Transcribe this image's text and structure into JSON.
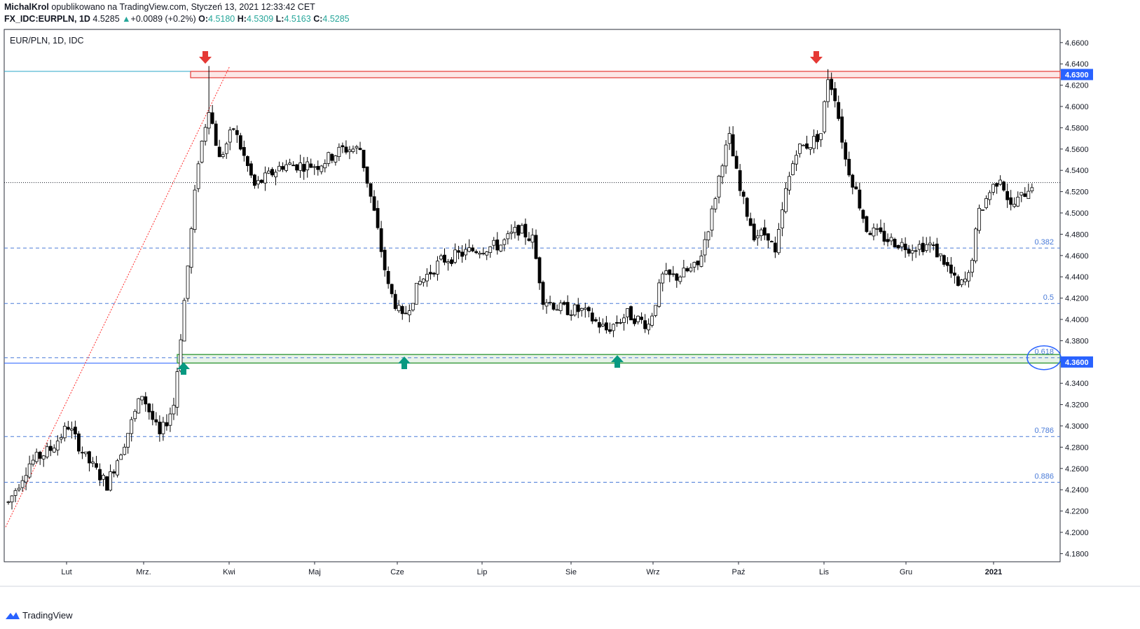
{
  "header": {
    "author": "MichalKrol",
    "published_text": "opublikowano na TradingView.com, Styczeń 13, 2021 12:33:42 CET",
    "symbol": "FX_IDC:EURPLN, 1D",
    "last": "4.5285",
    "change": "+0.0089 (+0.2%)",
    "o_label": "O:",
    "o": "4.5180",
    "h_label": "H:",
    "h": "4.5309",
    "l_label": "L:",
    "l": "4.5163",
    "c_label": "C:",
    "c": "4.5285"
  },
  "footer": {
    "brand": "TradingView"
  },
  "colors": {
    "candle_up_fill": "#ffffff",
    "candle_down_fill": "#000000",
    "fib_line": "#4a7bd8",
    "resistance": "#e53935",
    "support": "#43a047",
    "arrow_down": "#e53935",
    "arrow_up": "#089981",
    "price_marker": "#2962ff",
    "hline": "#2aa6c7",
    "trendline": "#ff2a2a"
  },
  "chart_data": {
    "type": "candlestick",
    "title": "EUR/PLN, 1D, IDC",
    "x_tick_labels": [
      "Lut",
      "Mrz.",
      "Kwi",
      "Maj",
      "Cze",
      "Lip",
      "Sie",
      "Wrz",
      "Paź",
      "Lis",
      "Gru",
      "2021"
    ],
    "y_ticks": [
      "4.6600",
      "4.6400",
      "4.6200",
      "4.6000",
      "4.5800",
      "4.5600",
      "4.5400",
      "4.5200",
      "4.5000",
      "4.4800",
      "4.4600",
      "4.4400",
      "4.4200",
      "4.4000",
      "4.3800",
      "4.3600",
      "4.3400",
      "4.3200",
      "4.3000",
      "4.2800",
      "4.2600",
      "4.2400",
      "4.2200",
      "4.2000",
      "4.1800"
    ],
    "ylim": [
      4.17,
      4.67
    ],
    "fib_levels": [
      {
        "label": "0.382",
        "value": 4.467
      },
      {
        "label": "0.5",
        "value": 4.415
      },
      {
        "label": "0.618",
        "value": 4.364
      },
      {
        "label": "0.786",
        "value": 4.29
      },
      {
        "label": "0.886",
        "value": 4.247
      }
    ],
    "resistance_zone": {
      "low": 4.627,
      "high": 4.633,
      "label": "4.6300"
    },
    "support_zone": {
      "low": 4.359,
      "high": 4.367,
      "label": "4.3600"
    },
    "last_price": 4.5285,
    "anchors": [
      {
        "x": 0,
        "y": 4.228
      },
      {
        "x": 6,
        "y": 4.265
      },
      {
        "x": 12,
        "y": 4.278
      },
      {
        "x": 17,
        "y": 4.3
      },
      {
        "x": 22,
        "y": 4.27
      },
      {
        "x": 28,
        "y": 4.245
      },
      {
        "x": 33,
        "y": 4.285
      },
      {
        "x": 38,
        "y": 4.33
      },
      {
        "x": 43,
        "y": 4.29
      },
      {
        "x": 47,
        "y": 4.32
      },
      {
        "x": 51,
        "y": 4.45
      },
      {
        "x": 54,
        "y": 4.55
      },
      {
        "x": 57,
        "y": 4.6
      },
      {
        "x": 60,
        "y": 4.55
      },
      {
        "x": 64,
        "y": 4.58
      },
      {
        "x": 70,
        "y": 4.525
      },
      {
        "x": 78,
        "y": 4.545
      },
      {
        "x": 88,
        "y": 4.545
      },
      {
        "x": 95,
        "y": 4.56
      },
      {
        "x": 100,
        "y": 4.56
      },
      {
        "x": 104,
        "y": 4.5
      },
      {
        "x": 108,
        "y": 4.43
      },
      {
        "x": 112,
        "y": 4.4
      },
      {
        "x": 117,
        "y": 4.435
      },
      {
        "x": 123,
        "y": 4.455
      },
      {
        "x": 132,
        "y": 4.465
      },
      {
        "x": 140,
        "y": 4.47
      },
      {
        "x": 145,
        "y": 4.485
      },
      {
        "x": 149,
        "y": 4.475
      },
      {
        "x": 152,
        "y": 4.42
      },
      {
        "x": 157,
        "y": 4.41
      },
      {
        "x": 163,
        "y": 4.408
      },
      {
        "x": 170,
        "y": 4.39
      },
      {
        "x": 176,
        "y": 4.405
      },
      {
        "x": 182,
        "y": 4.395
      },
      {
        "x": 186,
        "y": 4.44
      },
      {
        "x": 190,
        "y": 4.44
      },
      {
        "x": 196,
        "y": 4.45
      },
      {
        "x": 200,
        "y": 4.5
      },
      {
        "x": 203,
        "y": 4.55
      },
      {
        "x": 205,
        "y": 4.57
      },
      {
        "x": 208,
        "y": 4.52
      },
      {
        "x": 212,
        "y": 4.48
      },
      {
        "x": 216,
        "y": 4.48
      },
      {
        "x": 218,
        "y": 4.46
      },
      {
        "x": 221,
        "y": 4.52
      },
      {
        "x": 224,
        "y": 4.56
      },
      {
        "x": 228,
        "y": 4.565
      },
      {
        "x": 231,
        "y": 4.575
      },
      {
        "x": 233,
        "y": 4.628
      },
      {
        "x": 235,
        "y": 4.61
      },
      {
        "x": 238,
        "y": 4.55
      },
      {
        "x": 241,
        "y": 4.52
      },
      {
        "x": 244,
        "y": 4.485
      },
      {
        "x": 250,
        "y": 4.475
      },
      {
        "x": 256,
        "y": 4.468
      },
      {
        "x": 262,
        "y": 4.47
      },
      {
        "x": 266,
        "y": 4.455
      },
      {
        "x": 270,
        "y": 4.43
      },
      {
        "x": 273,
        "y": 4.44
      },
      {
        "x": 276,
        "y": 4.5
      },
      {
        "x": 279,
        "y": 4.52
      },
      {
        "x": 282,
        "y": 4.535
      },
      {
        "x": 285,
        "y": 4.505
      },
      {
        "x": 288,
        "y": 4.515
      },
      {
        "x": 291,
        "y": 4.528
      }
    ],
    "range_x": [
      0,
      300
    ],
    "peaks": {
      "mar_high": 4.638,
      "mar_high_idx": 57,
      "nov_high": 4.635,
      "nov_high_idx": 233
    }
  }
}
